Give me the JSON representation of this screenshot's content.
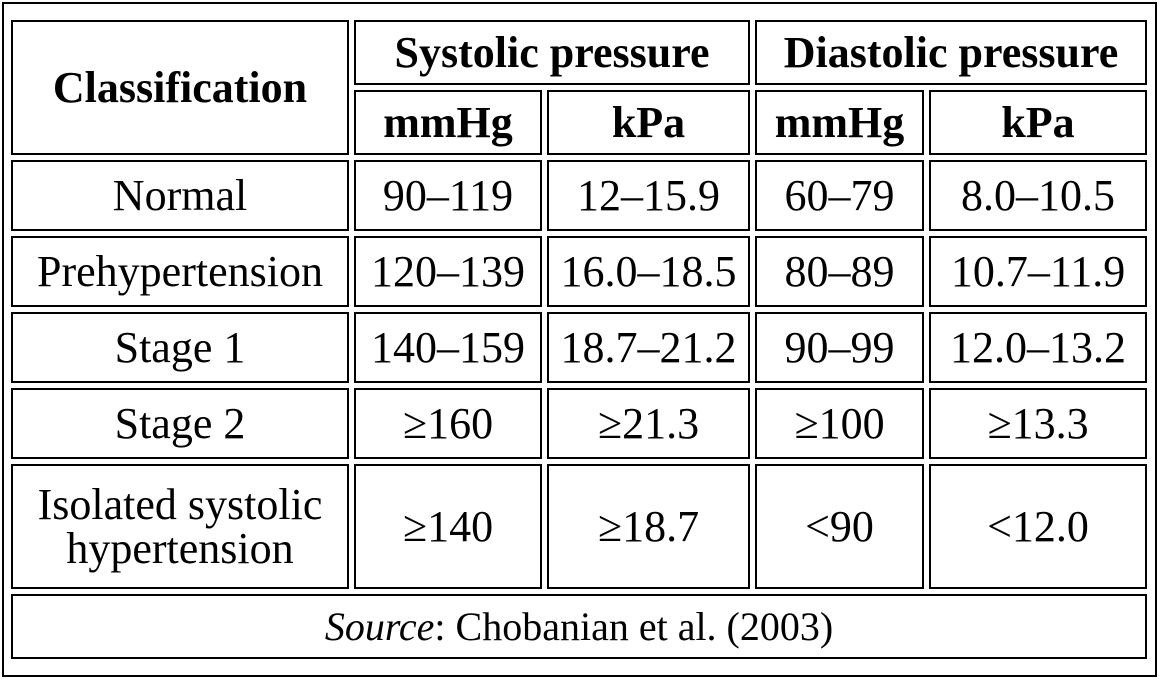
{
  "table": {
    "headers": {
      "classification": "Classification",
      "systolic": "Systolic pressure",
      "diastolic": "Diastolic pressure",
      "units": [
        "mmHg",
        "kPa",
        "mmHg",
        "kPa"
      ]
    },
    "rows": [
      {
        "classification": "Normal",
        "values": [
          "90–119",
          "12–15.9",
          "60–79",
          "8.0–10.5"
        ]
      },
      {
        "classification": "Prehypertension",
        "values": [
          "120–139",
          "16.0–18.5",
          "80–89",
          "10.7–11.9"
        ]
      },
      {
        "classification": "Stage 1",
        "values": [
          "140–159",
          "18.7–21.2",
          "90–99",
          "12.0–13.2"
        ]
      },
      {
        "classification": "Stage 2",
        "values": [
          "≥160",
          "≥21.3",
          "≥100",
          "≥13.3"
        ]
      },
      {
        "classification_line1": "Isolated systolic",
        "classification_line2": "hypertension",
        "values": [
          "≥140",
          "≥18.7",
          "<90",
          "<12.0"
        ]
      }
    ],
    "source": {
      "label": "Source",
      "text": ": Chobanian et al. (2003)"
    }
  }
}
